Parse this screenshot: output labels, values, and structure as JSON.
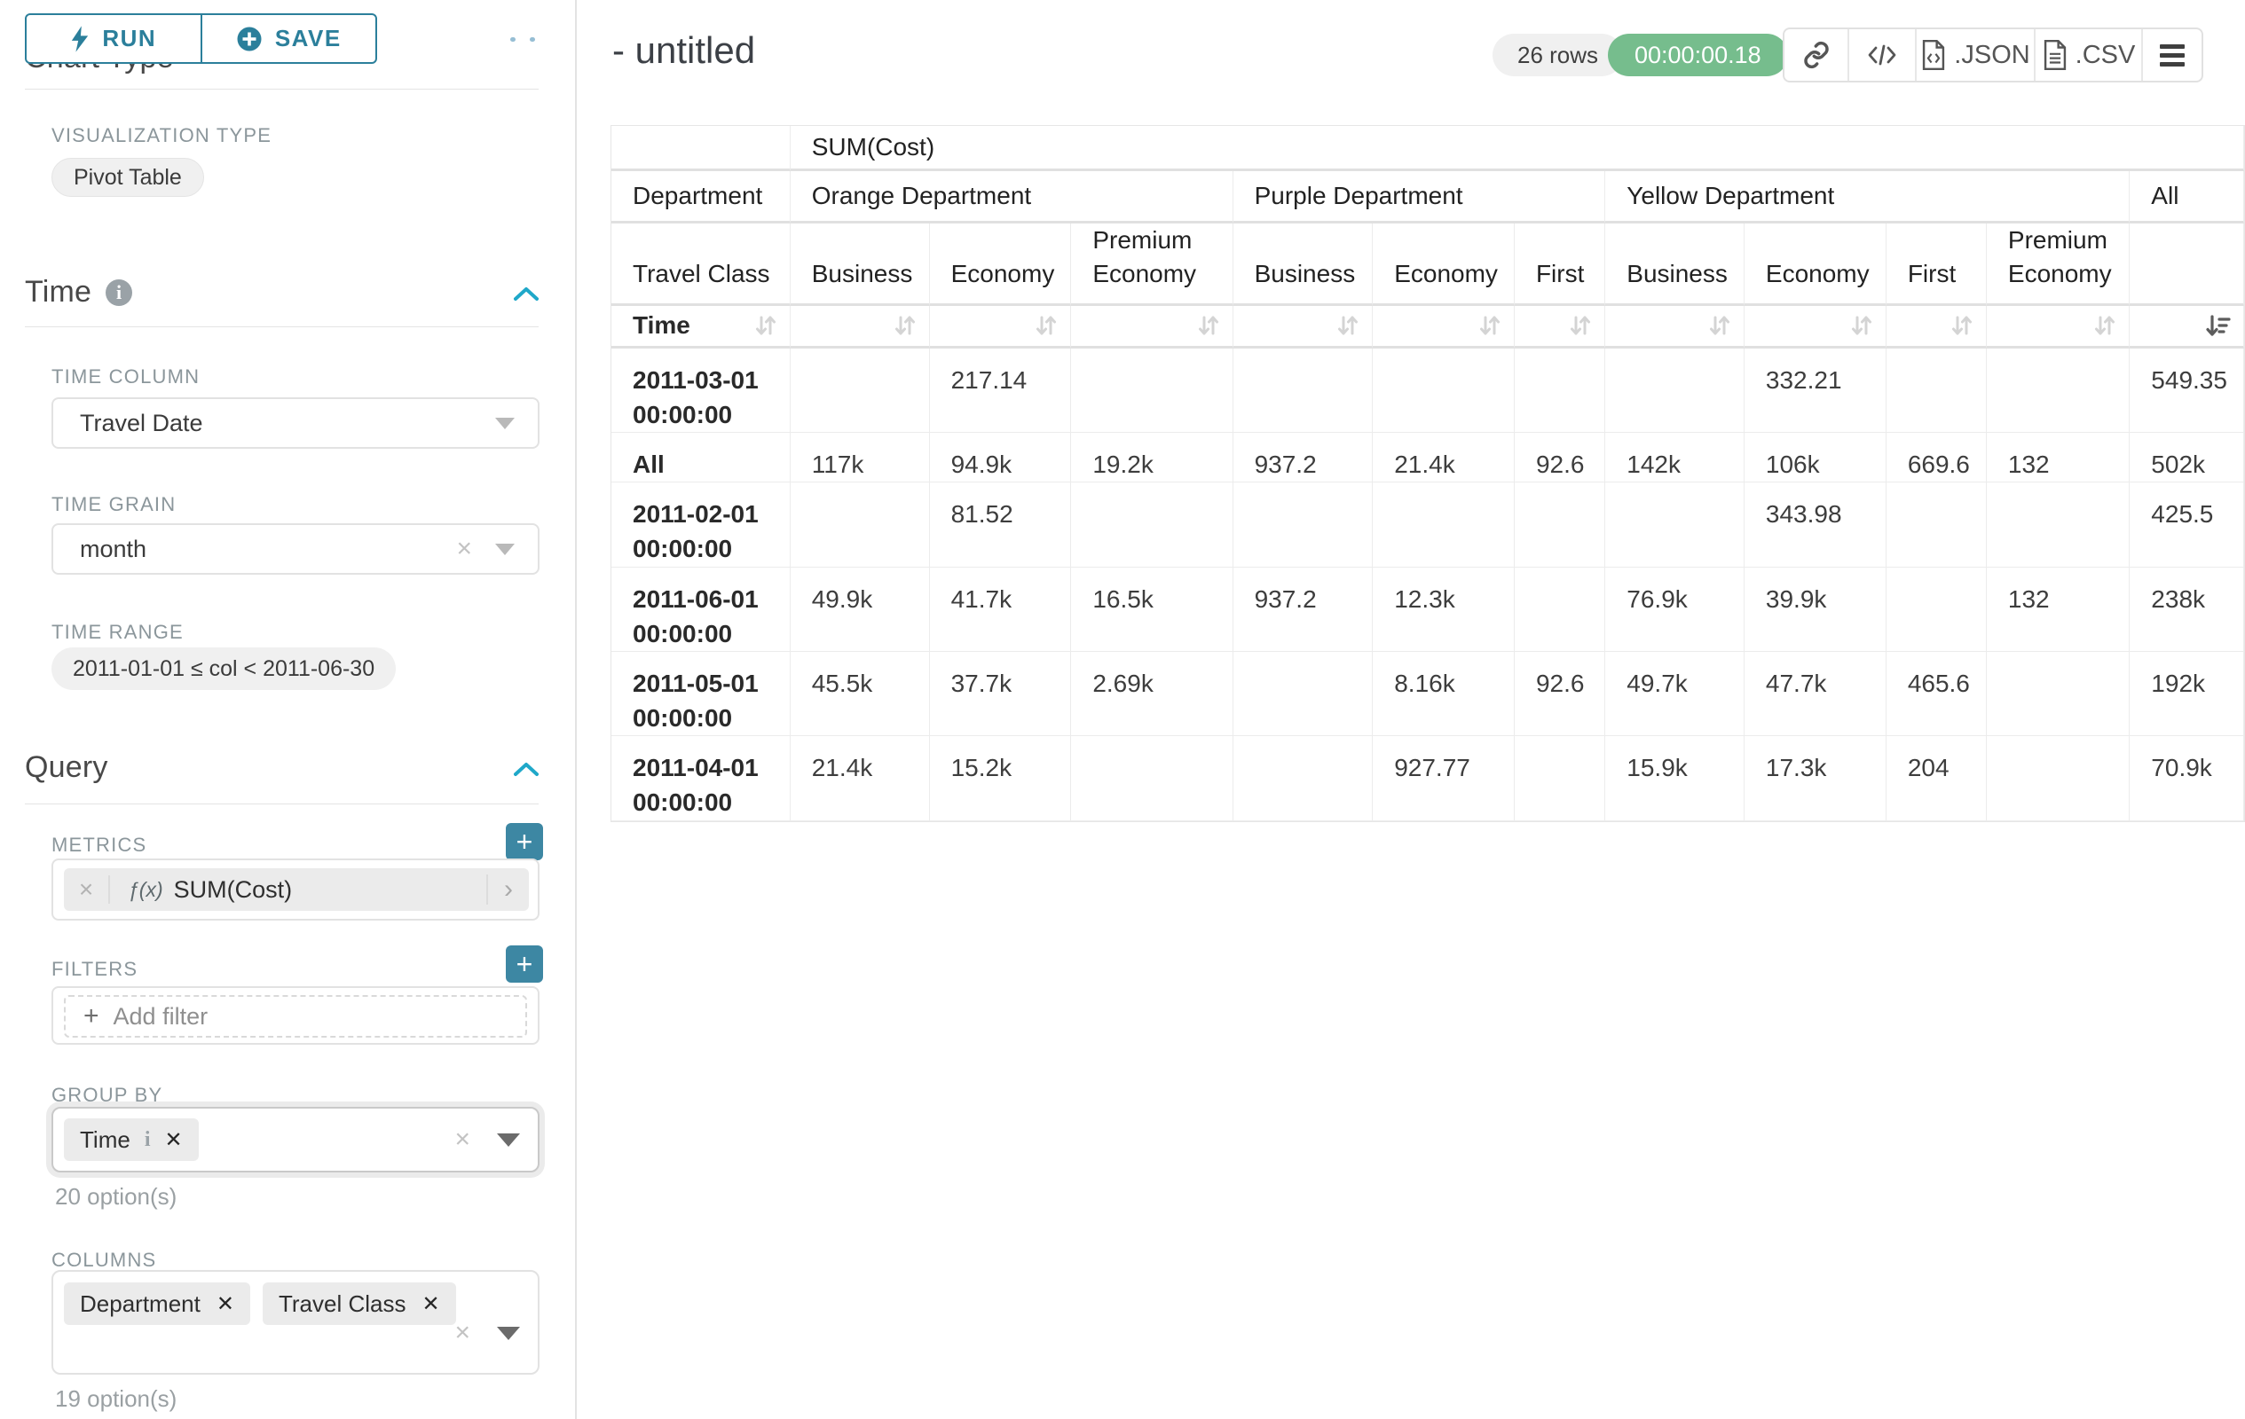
{
  "left_panel": {
    "run_label": "RUN",
    "save_label": "SAVE",
    "chart_type_heading": "Chart Type",
    "viz_type_label": "VISUALIZATION TYPE",
    "viz_type_value": "Pivot Table",
    "time": {
      "title": "Time",
      "time_column_label": "TIME COLUMN",
      "time_column_value": "Travel Date",
      "time_grain_label": "TIME GRAIN",
      "time_grain_value": "month",
      "time_range_label": "TIME RANGE",
      "time_range_value": "2011-01-01 ≤ col < 2011-06-30"
    },
    "query": {
      "title": "Query",
      "metrics_label": "METRICS",
      "metric_fx": "ƒ(x)",
      "metric_value": "SUM(Cost)",
      "filters_label": "FILTERS",
      "add_filter_label": "Add filter",
      "group_by_label": "GROUP BY",
      "group_by_chips": [
        "Time"
      ],
      "group_by_options": "20 option(s)",
      "columns_label": "COLUMNS",
      "columns_chips": [
        "Department",
        "Travel Class"
      ],
      "columns_options": "19 option(s)"
    }
  },
  "header": {
    "title": "- untitled",
    "row_count": "26 rows",
    "timer": "00:00:00.18",
    "json_label": ".JSON",
    "csv_label": ".CSV"
  },
  "table": {
    "metric_header": "SUM(Cost)",
    "department_label": "Department",
    "travel_class_label": "Travel Class",
    "time_label": "Time",
    "col_groups": [
      {
        "label": "Orange Department",
        "cols": [
          "Business",
          "Economy",
          "Premium Economy"
        ]
      },
      {
        "label": "Purple Department",
        "cols": [
          "Business",
          "Economy",
          "First"
        ]
      },
      {
        "label": "Yellow Department",
        "cols": [
          "Business",
          "Economy",
          "First",
          "Premium Economy"
        ]
      },
      {
        "label": "All",
        "cols": [
          ""
        ]
      }
    ],
    "rows": [
      {
        "label": "2011-03-01 00:00:00",
        "values": [
          "",
          "217.14",
          "",
          "",
          "",
          "",
          "",
          "332.21",
          "",
          "",
          "549.35"
        ]
      },
      {
        "label": "All",
        "values": [
          "117k",
          "94.9k",
          "19.2k",
          "937.2",
          "21.4k",
          "92.6",
          "142k",
          "106k",
          "669.6",
          "132",
          "502k"
        ]
      },
      {
        "label": "2011-02-01 00:00:00",
        "values": [
          "",
          "81.52",
          "",
          "",
          "",
          "",
          "",
          "343.98",
          "",
          "",
          "425.5"
        ]
      },
      {
        "label": "2011-06-01 00:00:00",
        "values": [
          "49.9k",
          "41.7k",
          "16.5k",
          "937.2",
          "12.3k",
          "",
          "76.9k",
          "39.9k",
          "",
          "132",
          "238k"
        ]
      },
      {
        "label": "2011-05-01 00:00:00",
        "values": [
          "45.5k",
          "37.7k",
          "2.69k",
          "",
          "8.16k",
          "92.6",
          "49.7k",
          "47.7k",
          "465.6",
          "",
          "192k"
        ]
      },
      {
        "label": "2011-04-01 00:00:00",
        "values": [
          "21.4k",
          "15.2k",
          "",
          "",
          "927.77",
          "",
          "15.9k",
          "17.3k",
          "204",
          "",
          "70.9k"
        ]
      }
    ]
  }
}
